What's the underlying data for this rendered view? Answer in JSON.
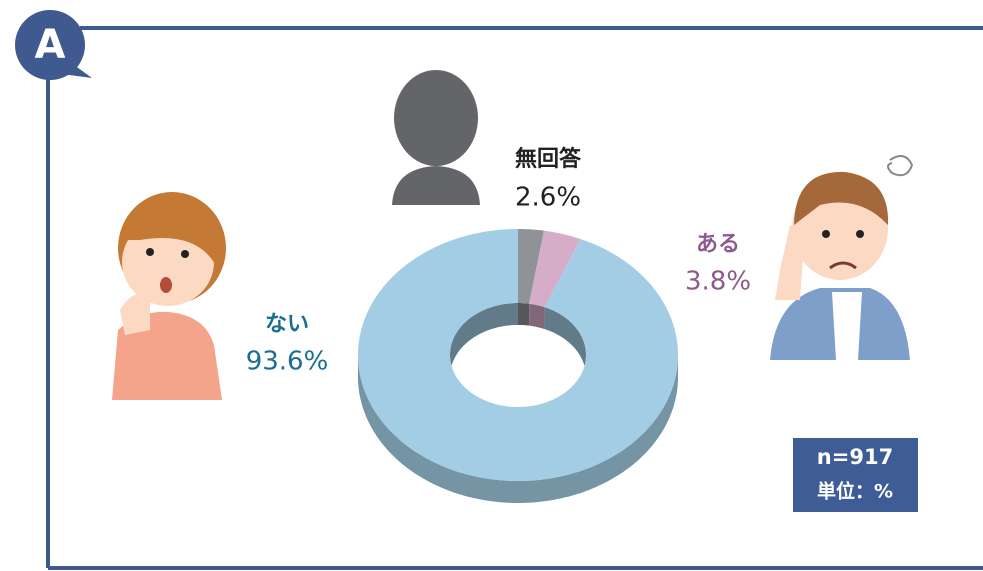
{
  "badge": "A",
  "chart_data": {
    "type": "donut",
    "categories": [
      "無回答",
      "ある",
      "ない"
    ],
    "values": [
      2.6,
      3.8,
      93.6
    ],
    "value_labels": [
      "2.6%",
      "3.8%",
      "93.6%"
    ],
    "colors": [
      "#8f9296",
      "#d5adc9",
      "#a2cde4"
    ],
    "label_colors": [
      "#222222",
      "#8e5a8e",
      "#1b6e8f"
    ]
  },
  "note": {
    "sample": "n=917",
    "unit": "単位：%"
  }
}
